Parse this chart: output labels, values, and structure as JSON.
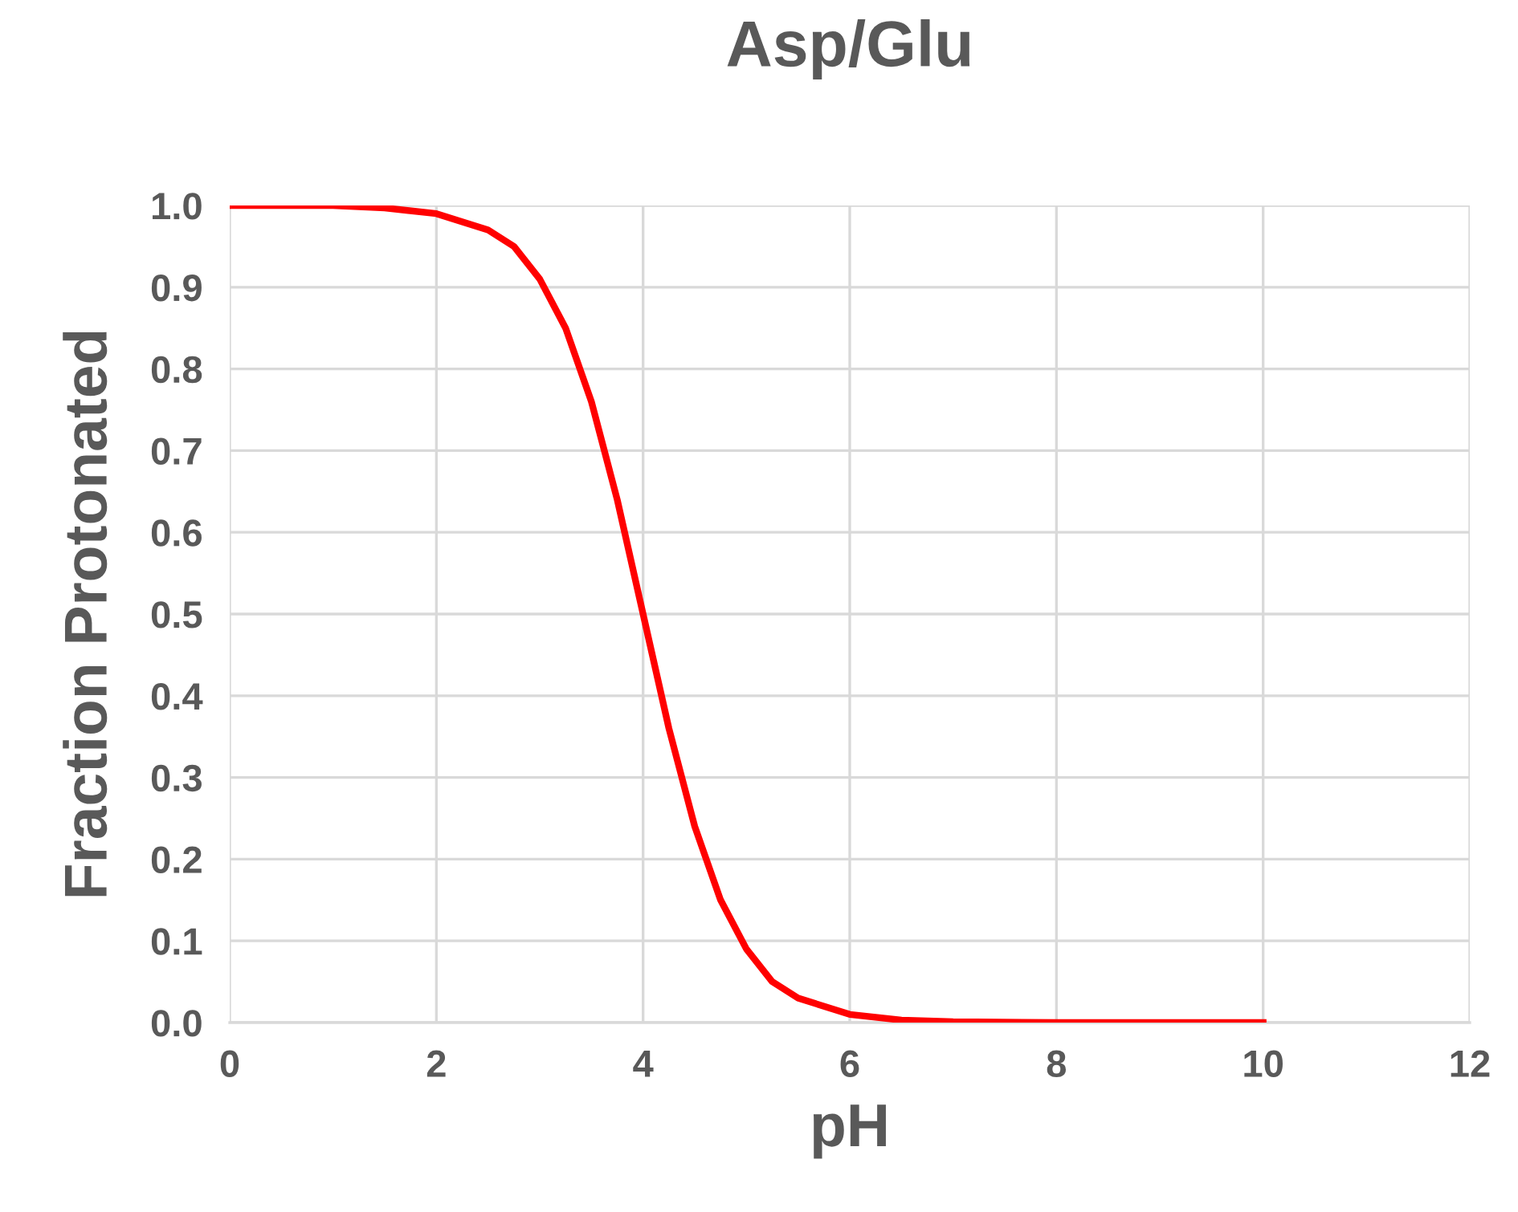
{
  "chart_data": {
    "type": "line",
    "title": "Asp/Glu",
    "xlabel": "pH",
    "ylabel": "Fraction Protonated",
    "series": [
      {
        "color": "#ff0000",
        "x": [
          0,
          1,
          1.5,
          2,
          2.5,
          2.75,
          3,
          3.25,
          3.5,
          3.75,
          4,
          4.25,
          4.5,
          4.75,
          5,
          5.25,
          5.5,
          6,
          6.5,
          7,
          8,
          9,
          10
        ],
        "values": [
          1.0,
          1.0,
          0.997,
          0.99,
          0.97,
          0.95,
          0.91,
          0.85,
          0.76,
          0.64,
          0.5,
          0.36,
          0.24,
          0.15,
          0.09,
          0.05,
          0.03,
          0.01,
          0.003,
          0.001,
          0.0,
          0.0,
          0.0
        ]
      }
    ],
    "xlim": [
      0,
      12
    ],
    "xticks": [
      0,
      2,
      4,
      6,
      8,
      10,
      12
    ],
    "ylim": [
      0,
      1.0
    ],
    "yticks": [
      {
        "value": 0,
        "label": "0.0"
      },
      {
        "value": 0.1,
        "label": "0.1"
      },
      {
        "value": 0.2,
        "label": "0.2"
      },
      {
        "value": 0.3,
        "label": "0.3"
      },
      {
        "value": 0.4,
        "label": "0.4"
      },
      {
        "value": 0.5,
        "label": "0.5"
      },
      {
        "value": 0.6,
        "label": "0.6"
      },
      {
        "value": 0.7,
        "label": "0.7"
      },
      {
        "value": 0.8,
        "label": "0.8"
      },
      {
        "value": 0.9,
        "label": "0.9"
      },
      {
        "value": 1.0,
        "label": "1.0"
      }
    ],
    "grid": true,
    "legend": false,
    "marker": "none",
    "line_style": "solid"
  }
}
